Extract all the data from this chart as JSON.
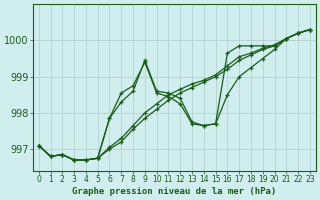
{
  "title": "Graphe pression niveau de la mer (hPa)",
  "background_color": "#d0eeee",
  "line_color": "#1a5c1a",
  "grid_color": "#b0cccc",
  "xlim": [
    -0.5,
    23.5
  ],
  "ylim": [
    996.4,
    1001.0
  ],
  "yticks": [
    997,
    998,
    999,
    1000
  ],
  "xticks": [
    0,
    1,
    2,
    3,
    4,
    5,
    6,
    7,
    8,
    9,
    10,
    11,
    12,
    13,
    14,
    15,
    16,
    17,
    18,
    19,
    20,
    21,
    22,
    23
  ],
  "lines": [
    {
      "x": [
        0,
        1,
        2,
        3,
        4,
        5,
        6,
        7,
        8,
        9,
        10,
        11,
        12,
        13,
        14,
        15,
        16,
        17,
        18,
        19,
        20,
        21,
        22,
        23
      ],
      "y": [
        997.1,
        996.8,
        996.85,
        996.7,
        996.7,
        996.75,
        997.85,
        998.55,
        998.75,
        999.4,
        998.55,
        998.45,
        998.25,
        997.7,
        997.65,
        997.7,
        998.5,
        999.0,
        999.25,
        999.5,
        999.75,
        1000.05,
        1000.2,
        1000.3
      ]
    },
    {
      "x": [
        0,
        1,
        2,
        3,
        4,
        5,
        6,
        7,
        8,
        9,
        10,
        11,
        12,
        13,
        14,
        15,
        16,
        17,
        18,
        19,
        20,
        21,
        22,
        23
      ],
      "y": [
        997.1,
        996.8,
        996.85,
        996.7,
        996.7,
        996.75,
        997.0,
        997.2,
        997.55,
        997.85,
        998.1,
        998.35,
        998.55,
        998.7,
        998.85,
        999.0,
        999.2,
        999.45,
        999.6,
        999.75,
        999.85,
        1000.05,
        1000.2,
        1000.3
      ]
    },
    {
      "x": [
        0,
        1,
        2,
        3,
        4,
        5,
        6,
        7,
        8,
        9,
        10,
        11,
        12,
        13,
        14,
        15,
        16,
        17,
        18,
        19,
        20,
        21,
        22,
        23
      ],
      "y": [
        997.1,
        996.8,
        996.85,
        996.7,
        996.7,
        996.75,
        997.05,
        997.3,
        997.65,
        998.0,
        998.25,
        998.5,
        998.65,
        998.8,
        998.9,
        999.05,
        999.3,
        999.55,
        999.65,
        999.78,
        999.88,
        1000.05,
        1000.2,
        1000.3
      ]
    },
    {
      "x": [
        0,
        1,
        2,
        3,
        4,
        5,
        6,
        7,
        8,
        9,
        10,
        11,
        12,
        13,
        14,
        15,
        16,
        17,
        18,
        19,
        20,
        21,
        22,
        23
      ],
      "y": [
        997.1,
        996.8,
        996.85,
        996.7,
        996.7,
        996.75,
        997.85,
        998.3,
        998.6,
        999.45,
        998.6,
        998.55,
        998.4,
        997.75,
        997.65,
        997.7,
        999.65,
        999.85,
        999.85,
        999.85,
        999.85,
        1000.05,
        1000.2,
        1000.3
      ]
    }
  ]
}
